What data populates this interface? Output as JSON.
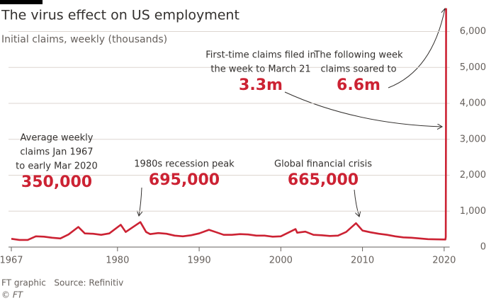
{
  "chart_data": {
    "type": "line",
    "title": "The virus effect on US employment",
    "subtitle": "Initial claims, weekly (thousands)",
    "source": "FT graphic   Source: Refinitiv",
    "credit": "© FT",
    "color": "#cc2233",
    "xlim": [
      1967,
      2020.5
    ],
    "xticks": [
      1967,
      1980,
      1990,
      2000,
      2010,
      2020
    ],
    "ylim": [
      0,
      6700
    ],
    "yticks": [
      0,
      {
        "value": 1000,
        "label": "1,000"
      },
      {
        "value": 2000,
        "label": "2,000"
      },
      {
        "value": 3000,
        "label": "3,000"
      },
      {
        "value": 4000,
        "label": "4,000"
      },
      {
        "value": 5000,
        "label": "5,000"
      },
      {
        "value": 6000,
        "label": "6,000"
      }
    ],
    "grid": true,
    "x": [
      1967,
      1968,
      1969,
      1970,
      1971,
      1972,
      1973,
      1974,
      1975.2,
      1976,
      1977,
      1978,
      1979,
      1980.4,
      1981,
      1982.8,
      1983.5,
      1984,
      1985,
      1986,
      1987,
      1988,
      1989,
      1990,
      1991.2,
      1992,
      1993,
      1994,
      1995,
      1996,
      1997,
      1998,
      1999,
      2000,
      2001.8,
      2002,
      2003,
      2004,
      2005,
      2006,
      2007,
      2008,
      2009.2,
      2010,
      2011,
      2012,
      2013,
      2014,
      2015,
      2016,
      2017,
      2018,
      2019,
      2020.15,
      2020.2,
      2020.22,
      2020.24
    ],
    "values": [
      230,
      200,
      200,
      300,
      290,
      260,
      240,
      350,
      560,
      380,
      370,
      340,
      380,
      620,
      420,
      695,
      420,
      360,
      390,
      370,
      320,
      300,
      330,
      380,
      480,
      420,
      340,
      340,
      360,
      350,
      320,
      320,
      290,
      300,
      500,
      400,
      430,
      340,
      330,
      310,
      320,
      420,
      665,
      460,
      410,
      370,
      340,
      300,
      270,
      260,
      240,
      220,
      215,
      210,
      282,
      3307,
      6648
    ],
    "annotations": [
      {
        "text": [
          "Average weekly",
          "claims Jan 1967",
          "to early Mar 2020"
        ],
        "value": "350,000"
      },
      {
        "text": [
          "1980s recession peak"
        ],
        "value": "695,000"
      },
      {
        "text": [
          "Global financial crisis"
        ],
        "value": "665,000"
      },
      {
        "text": [
          "First-time claims filed in",
          "the week to March 21"
        ],
        "value": "3.3m"
      },
      {
        "text": [
          "The following week",
          "claims soared to"
        ],
        "value": "6.6m"
      }
    ]
  }
}
